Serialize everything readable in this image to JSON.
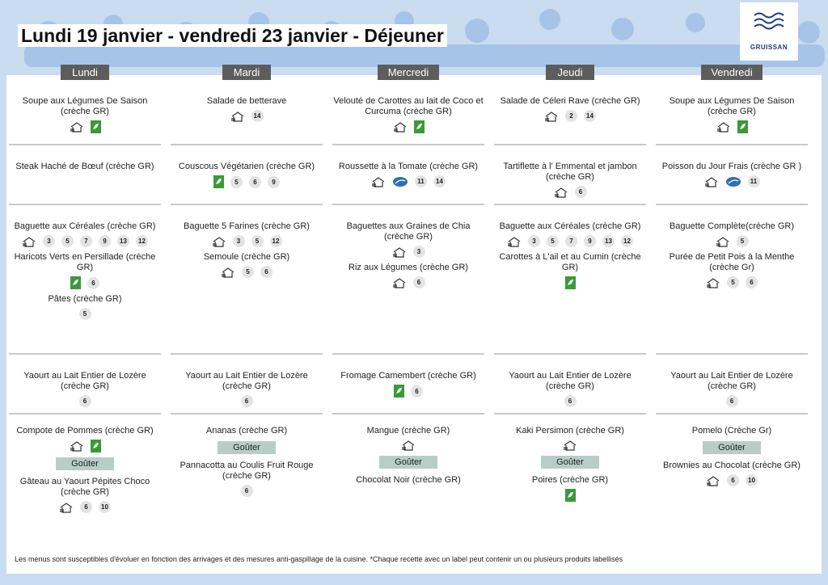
{
  "header": {
    "title": "Lundi 19 janvier - vendredi 23 janvier  - Déjeuner",
    "logo": "GRUISSAN"
  },
  "gouter_label": "Goûter",
  "days": [
    {
      "name": "Lundi",
      "sections": [
        [
          {
            "name": "Soupe aux Légumes De Saison (crèche GR)"
          }
        ],
        [
          {
            "name": "Steak Haché de Bœuf (crèche GR)"
          }
        ],
        [
          {
            "name": "Baguette aux Céréales (crèche GR)",
            "allergens": [
              3,
              5,
              7,
              9,
              13,
              12
            ]
          },
          {
            "name": "Haricots Verts en Persillade (crèche GR)",
            "allergens": [
              6
            ]
          },
          {
            "name": "Pâtes (crèche GR)",
            "allergens": [
              5
            ]
          }
        ],
        [
          {
            "name": "Yaourt au Lait Entier de Lozère (crèche GR)",
            "allergens": [
              6
            ]
          }
        ],
        [
          {
            "name": "Compote de Pommes (crèche GR)"
          }
        ]
      ],
      "gouter": [
        {
          "name": "Gâteau au Yaourt Pépites Choco (crèche GR)",
          "allergens": [
            6,
            10
          ]
        }
      ]
    },
    {
      "name": "Mardi",
      "sections": [
        [
          {
            "name": "Salade de betterave",
            "allergens": [
              14
            ]
          }
        ],
        [
          {
            "name": "Couscous Végétarien (crèche GR)",
            "allergens": [
              5,
              6,
              9
            ]
          }
        ],
        [
          {
            "name": "Baguette 5 Farines (crèche GR)",
            "allergens": [
              3,
              5,
              12
            ]
          },
          {
            "name": "Semoule (crèche GR)",
            "allergens": [
              5,
              6
            ]
          }
        ],
        [
          {
            "name": "Yaourt au Lait Entier de Lozère (crèche GR)",
            "allergens": [
              6
            ]
          }
        ],
        [
          {
            "name": "Ananas (crèche GR)"
          }
        ]
      ],
      "gouter": [
        {
          "name": "Pannacotta au Coulis Fruit Rouge (crèche GR)",
          "allergens": [
            6
          ]
        }
      ]
    },
    {
      "name": "Mercredi",
      "sections": [
        [
          {
            "name": "Velouté de Carottes au lait de Coco et Curcuma (crèche GR)"
          }
        ],
        [
          {
            "name": "Roussette à la Tomate (crèche GR)",
            "allergens": [
              11,
              14
            ]
          }
        ],
        [
          {
            "name": "Baguettes aux Graines de Chia (crèche GR)",
            "allergens": [
              3
            ]
          },
          {
            "name": "Riz aux Légumes (crèche GR)",
            "allergens": [
              6
            ]
          }
        ],
        [
          {
            "name": "Fromage Camembert (crèche GR)",
            "allergens": [
              6
            ]
          }
        ],
        [
          {
            "name": "Mangue  (crèche GR)"
          }
        ]
      ],
      "gouter": [
        {
          "name": "Chocolat Noir (crèche GR)"
        }
      ]
    },
    {
      "name": "Jeudi",
      "sections": [
        [
          {
            "name": "Salade de Céleri Rave (crèche GR)",
            "allergens": [
              2,
              14
            ]
          }
        ],
        [
          {
            "name": "Tartiflette à l' Emmental et jambon (crèche GR)",
            "allergens": [
              6
            ]
          }
        ],
        [
          {
            "name": "Baguette aux Céréales (crèche GR)",
            "allergens": [
              3,
              5,
              7,
              9,
              13,
              12
            ]
          },
          {
            "name": "Carottes à L'ail et au Cumin (crèche GR)"
          }
        ],
        [
          {
            "name": "Yaourt au Lait Entier de Lozère (crèche GR)",
            "allergens": [
              6
            ]
          }
        ],
        [
          {
            "name": "Kaki  Persimon (crèche GR)"
          }
        ]
      ],
      "gouter": [
        {
          "name": "Poires (crèche GR)"
        }
      ]
    },
    {
      "name": "Vendredi",
      "sections": [
        [
          {
            "name": "Soupe aux Légumes De Saison (crèche GR)"
          }
        ],
        [
          {
            "name": "Poisson du Jour Frais (crèche GR )",
            "allergens": [
              11
            ]
          }
        ],
        [
          {
            "name": "Baguette Complète(crèche GR)",
            "allergens": [
              5
            ]
          },
          {
            "name": "Purée de Petit Pois à la Menthe (crèche Gr)",
            "allergens": [
              5,
              6
            ]
          }
        ],
        [
          {
            "name": "Yaourt au Lait Entier de Lozère (crèche GR)",
            "allergens": [
              6
            ]
          }
        ],
        [
          {
            "name": "Pomelo (Crèche Gr)"
          }
        ]
      ],
      "gouter": [
        {
          "name": "Brownies au Chocolat (crèche GR)",
          "allergens": [
            6,
            10
          ]
        }
      ]
    }
  ],
  "footer": "Les menus sont susceptibles d'évoluer en fonction des arrivages et des mesures anti-gaspillage de la cuisine. *Chaque recette avec un label peut contenir un ou plusieurs produits labellisés"
}
